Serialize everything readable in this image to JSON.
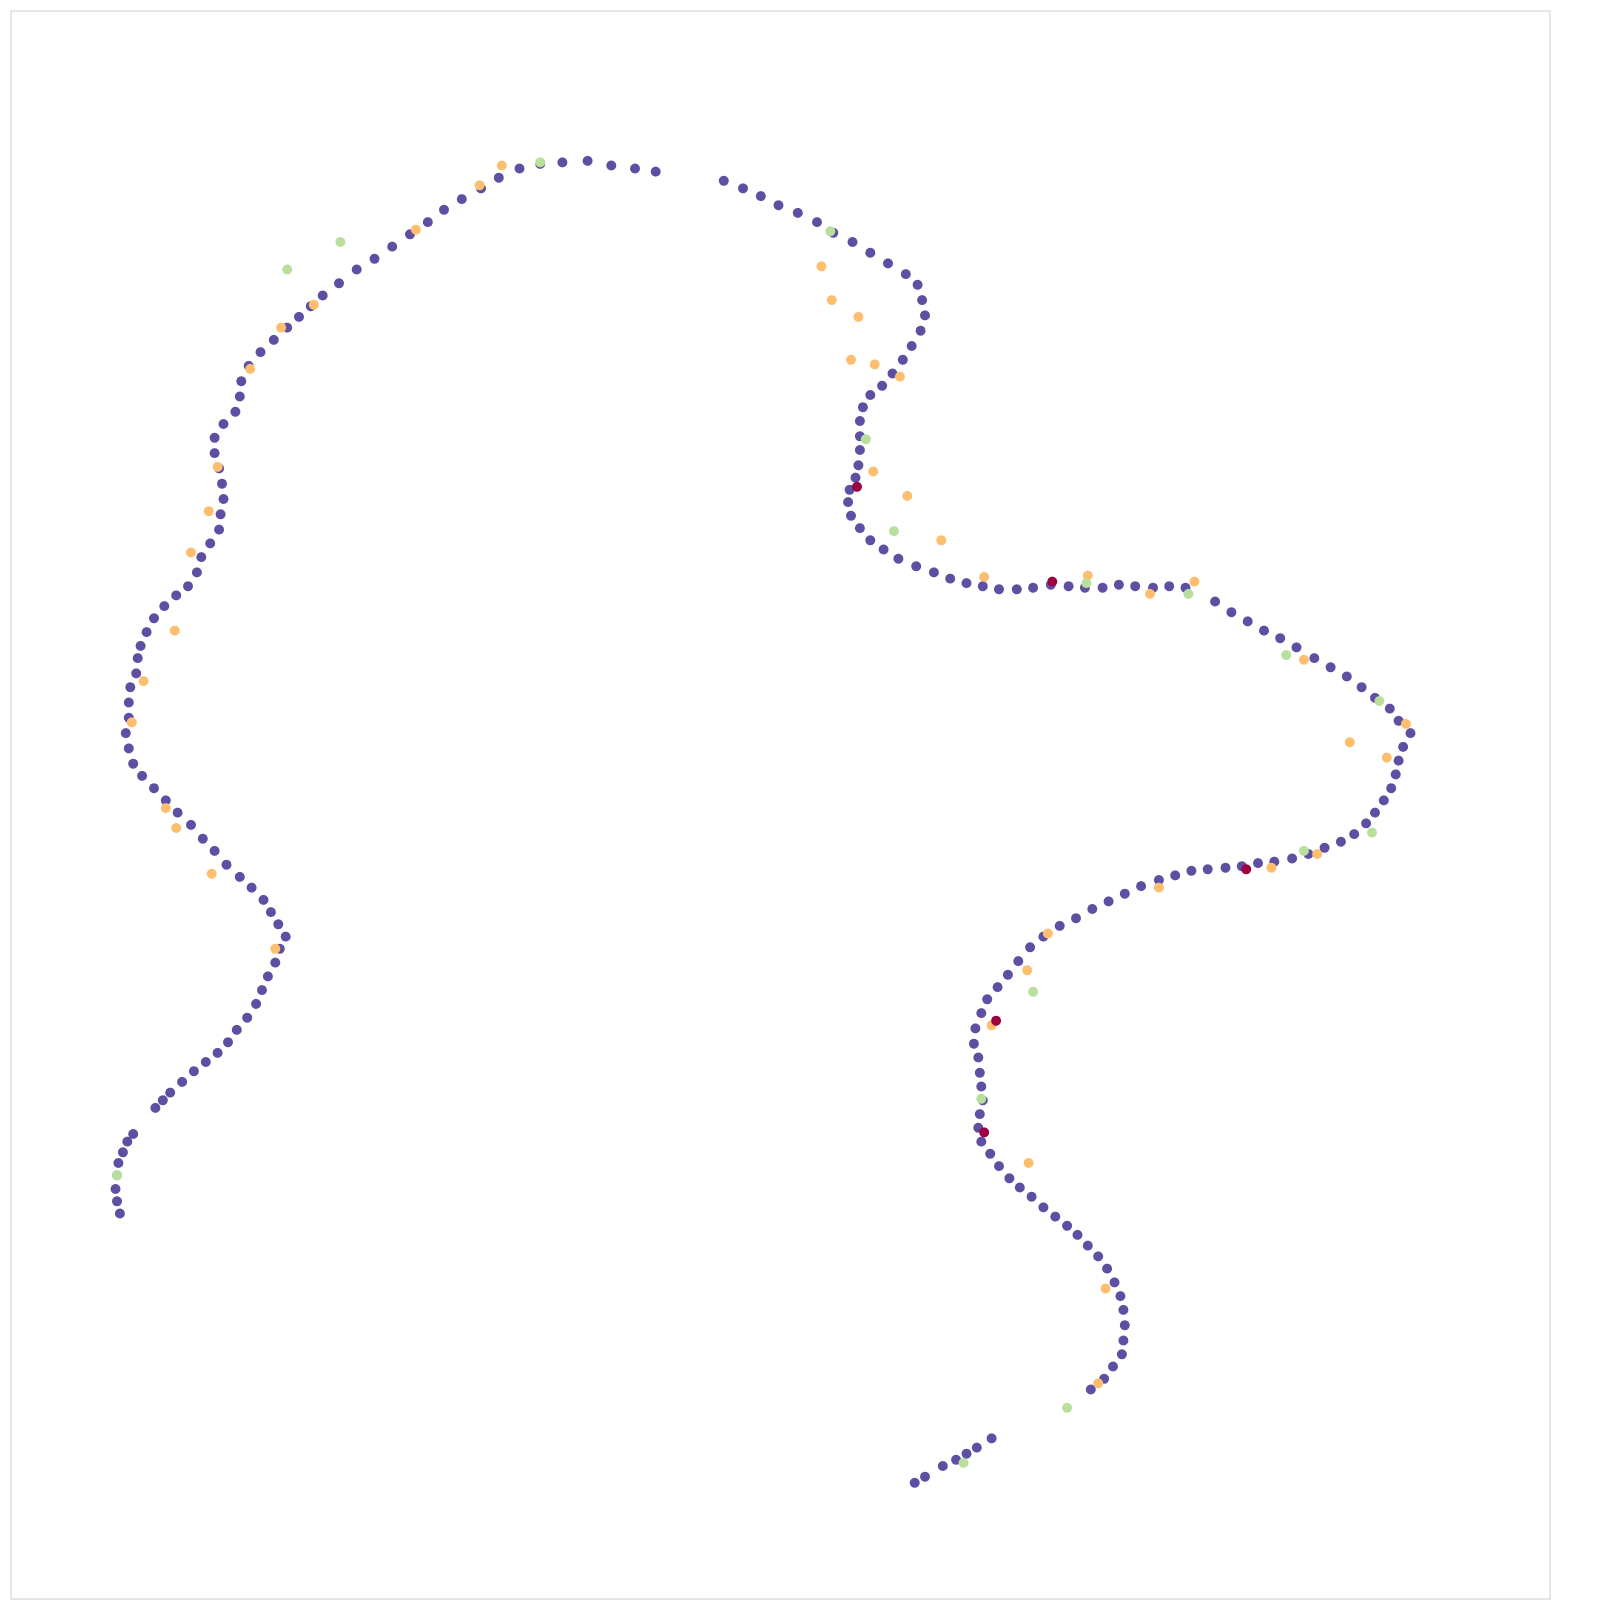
{
  "chart_data": {
    "type": "scatter",
    "title": "",
    "xlabel": "",
    "ylabel": "",
    "grid": false,
    "axes_visible": false,
    "legend": "none",
    "xlim": [
      0,
      100
    ],
    "ylim": [
      0,
      100
    ],
    "colors": {
      "primary": "#5e4fa2",
      "orange": "#fdbf6f",
      "green": "#b8df9c",
      "crimson": "#9e0142",
      "frame": "#dddddd"
    },
    "series": [
      {
        "color": "#5e4fa2",
        "points": [
          [
            5.4,
            23.3
          ],
          [
            5.2,
            24.1
          ],
          [
            5.1,
            24.9
          ],
          [
            5.2,
            25.8
          ],
          [
            5.3,
            26.6
          ],
          [
            5.6,
            27.3
          ],
          [
            5.9,
            28.0
          ],
          [
            6.3,
            28.5
          ],
          [
            7.8,
            30.2
          ],
          [
            8.3,
            30.7
          ],
          [
            8.8,
            31.2
          ],
          [
            9.6,
            31.9
          ],
          [
            10.4,
            32.6
          ],
          [
            11.2,
            33.2
          ],
          [
            12.0,
            33.8
          ],
          [
            12.7,
            34.5
          ],
          [
            13.3,
            35.3
          ],
          [
            14.0,
            36.1
          ],
          [
            14.6,
            37.0
          ],
          [
            15.0,
            37.9
          ],
          [
            15.4,
            38.8
          ],
          [
            15.9,
            39.7
          ],
          [
            16.2,
            40.6
          ],
          [
            16.6,
            41.4
          ],
          [
            16.1,
            42.2
          ],
          [
            15.6,
            43.0
          ],
          [
            15.1,
            43.8
          ],
          [
            14.3,
            44.6
          ],
          [
            13.5,
            45.3
          ],
          [
            12.6,
            46.1
          ],
          [
            11.8,
            47.0
          ],
          [
            11.0,
            47.8
          ],
          [
            10.2,
            48.7
          ],
          [
            9.3,
            49.5
          ],
          [
            8.5,
            50.3
          ],
          [
            7.7,
            51.1
          ],
          [
            6.9,
            51.9
          ],
          [
            6.3,
            52.7
          ],
          [
            6.0,
            53.7
          ],
          [
            5.8,
            54.7
          ],
          [
            6.0,
            55.7
          ],
          [
            6.0,
            56.7
          ],
          [
            6.1,
            57.7
          ],
          [
            6.5,
            58.6
          ],
          [
            6.6,
            59.6
          ],
          [
            6.8,
            60.4
          ],
          [
            7.2,
            61.3
          ],
          [
            7.7,
            62.2
          ],
          [
            8.4,
            63.0
          ],
          [
            9.2,
            63.7
          ],
          [
            10.0,
            64.3
          ],
          [
            10.6,
            65.2
          ],
          [
            10.9,
            66.2
          ],
          [
            11.5,
            67.1
          ],
          [
            12.1,
            68.0
          ],
          [
            12.2,
            69.0
          ],
          [
            12.4,
            70.0
          ],
          [
            12.3,
            71.0
          ],
          [
            12.1,
            72.0
          ],
          [
            11.8,
            73.0
          ],
          [
            11.8,
            74.0
          ],
          [
            12.4,
            74.9
          ],
          [
            13.2,
            75.7
          ],
          [
            13.5,
            76.7
          ],
          [
            13.6,
            77.7
          ],
          [
            14.1,
            78.7
          ],
          [
            14.9,
            79.6
          ],
          [
            15.8,
            80.4
          ],
          [
            16.7,
            81.2
          ],
          [
            17.5,
            81.9
          ],
          [
            18.3,
            82.6
          ],
          [
            19.1,
            83.3
          ],
          [
            20.2,
            84.1
          ],
          [
            21.4,
            85.0
          ],
          [
            22.6,
            85.7
          ],
          [
            23.8,
            86.5
          ],
          [
            25.0,
            87.3
          ],
          [
            26.2,
            88.1
          ],
          [
            27.3,
            88.9
          ],
          [
            28.5,
            89.6
          ],
          [
            29.8,
            90.3
          ],
          [
            31.0,
            91.0
          ],
          [
            32.4,
            91.6
          ],
          [
            33.8,
            91.9
          ],
          [
            35.3,
            92.0
          ],
          [
            37.0,
            92.1
          ],
          [
            38.6,
            91.8
          ],
          [
            40.2,
            91.6
          ],
          [
            41.6,
            91.4
          ],
          [
            46.2,
            90.8
          ],
          [
            47.5,
            90.3
          ],
          [
            48.7,
            89.8
          ],
          [
            49.9,
            89.2
          ],
          [
            51.2,
            88.7
          ],
          [
            52.5,
            88.1
          ],
          [
            53.6,
            87.4
          ],
          [
            54.9,
            86.8
          ],
          [
            56.1,
            86.1
          ],
          [
            57.3,
            85.4
          ],
          [
            58.5,
            84.7
          ],
          [
            59.3,
            84.0
          ],
          [
            59.6,
            83.0
          ],
          [
            59.8,
            82.0
          ],
          [
            59.5,
            81.0
          ],
          [
            58.9,
            80.0
          ],
          [
            58.3,
            79.1
          ],
          [
            57.6,
            78.2
          ],
          [
            56.9,
            77.4
          ],
          [
            56.1,
            76.8
          ],
          [
            55.6,
            76.0
          ],
          [
            55.4,
            75.1
          ],
          [
            55.4,
            74.1
          ],
          [
            55.4,
            73.2
          ],
          [
            55.3,
            72.2
          ],
          [
            55.1,
            71.4
          ],
          [
            54.7,
            70.6
          ],
          [
            54.6,
            69.8
          ],
          [
            54.8,
            68.9
          ],
          [
            55.4,
            68.1
          ],
          [
            56.1,
            67.3
          ],
          [
            57.0,
            66.7
          ],
          [
            58.0,
            66.1
          ],
          [
            59.2,
            65.6
          ],
          [
            60.4,
            65.2
          ],
          [
            61.5,
            64.8
          ],
          [
            62.6,
            64.5
          ],
          [
            63.7,
            64.3
          ],
          [
            64.8,
            64.1
          ],
          [
            66.0,
            64.1
          ],
          [
            67.1,
            64.2
          ],
          [
            68.3,
            64.4
          ],
          [
            69.5,
            64.3
          ],
          [
            70.6,
            64.2
          ],
          [
            71.8,
            64.2
          ],
          [
            72.9,
            64.4
          ],
          [
            74.0,
            64.3
          ],
          [
            75.2,
            64.2
          ],
          [
            76.3,
            64.3
          ],
          [
            77.4,
            64.2
          ],
          [
            79.4,
            63.3
          ],
          [
            80.5,
            62.6
          ],
          [
            81.6,
            62.0
          ],
          [
            82.7,
            61.4
          ],
          [
            83.8,
            60.9
          ],
          [
            84.9,
            60.3
          ],
          [
            86.1,
            59.6
          ],
          [
            87.2,
            59.0
          ],
          [
            88.3,
            58.4
          ],
          [
            89.3,
            57.7
          ],
          [
            90.2,
            57.0
          ],
          [
            91.2,
            56.3
          ],
          [
            91.8,
            55.5
          ],
          [
            92.6,
            54.7
          ],
          [
            92.1,
            53.8
          ],
          [
            91.8,
            52.9
          ],
          [
            91.6,
            52.0
          ],
          [
            91.3,
            51.1
          ],
          [
            90.8,
            50.3
          ],
          [
            90.2,
            49.5
          ],
          [
            89.6,
            48.8
          ],
          [
            88.8,
            48.1
          ],
          [
            87.9,
            47.6
          ],
          [
            86.8,
            47.2
          ],
          [
            85.7,
            46.8
          ],
          [
            84.6,
            46.5
          ],
          [
            83.4,
            46.3
          ],
          [
            82.3,
            46.2
          ],
          [
            81.2,
            46.0
          ],
          [
            80.1,
            45.9
          ],
          [
            78.9,
            45.8
          ],
          [
            77.8,
            45.7
          ],
          [
            76.7,
            45.4
          ],
          [
            75.6,
            45.1
          ],
          [
            74.4,
            44.7
          ],
          [
            73.3,
            44.2
          ],
          [
            72.2,
            43.7
          ],
          [
            71.1,
            43.2
          ],
          [
            70.0,
            42.6
          ],
          [
            68.9,
            42.1
          ],
          [
            67.8,
            41.4
          ],
          [
            66.9,
            40.7
          ],
          [
            66.1,
            39.8
          ],
          [
            65.4,
            38.9
          ],
          [
            64.7,
            38.1
          ],
          [
            64.0,
            37.3
          ],
          [
            63.6,
            36.4
          ],
          [
            63.2,
            35.4
          ],
          [
            63.1,
            34.4
          ],
          [
            63.4,
            33.5
          ],
          [
            63.5,
            32.5
          ],
          [
            63.6,
            31.6
          ],
          [
            63.7,
            30.7
          ],
          [
            63.5,
            29.8
          ],
          [
            63.4,
            28.9
          ],
          [
            63.6,
            28.0
          ],
          [
            64.2,
            27.2
          ],
          [
            64.8,
            26.4
          ],
          [
            65.5,
            25.6
          ],
          [
            66.2,
            25.0
          ],
          [
            67.0,
            24.4
          ],
          [
            67.8,
            23.7
          ],
          [
            68.6,
            23.1
          ],
          [
            69.4,
            22.5
          ],
          [
            70.1,
            21.9
          ],
          [
            70.8,
            21.2
          ],
          [
            71.5,
            20.5
          ],
          [
            72.1,
            19.7
          ],
          [
            72.6,
            18.8
          ],
          [
            73.0,
            17.9
          ],
          [
            73.2,
            17.0
          ],
          [
            73.3,
            16.0
          ],
          [
            73.2,
            15.0
          ],
          [
            73.1,
            14.1
          ],
          [
            72.5,
            13.3
          ],
          [
            71.9,
            12.5
          ],
          [
            71.0,
            11.8
          ],
          [
            64.3,
            8.6
          ],
          [
            63.3,
            8.0
          ],
          [
            62.6,
            7.6
          ],
          [
            61.9,
            7.2
          ],
          [
            61.0,
            6.8
          ],
          [
            59.8,
            6.1
          ],
          [
            59.1,
            5.7
          ]
        ]
      },
      {
        "color": "#fdbf6f",
        "points": [
          [
            31.2,
            91.8
          ],
          [
            29.7,
            90.5
          ],
          [
            25.4,
            87.6
          ],
          [
            18.5,
            82.7
          ],
          [
            16.3,
            81.2
          ],
          [
            14.2,
            78.5
          ],
          [
            12.0,
            72.1
          ],
          [
            11.4,
            69.2
          ],
          [
            10.2,
            66.5
          ],
          [
            9.1,
            61.4
          ],
          [
            7.0,
            58.1
          ],
          [
            6.2,
            55.4
          ],
          [
            8.5,
            49.8
          ],
          [
            9.2,
            48.5
          ],
          [
            11.6,
            45.5
          ],
          [
            15.9,
            40.6
          ],
          [
            52.8,
            85.2
          ],
          [
            53.5,
            83.0
          ],
          [
            55.3,
            81.9
          ],
          [
            54.8,
            79.1
          ],
          [
            56.4,
            78.8
          ],
          [
            58.1,
            78.0
          ],
          [
            56.3,
            71.8
          ],
          [
            58.6,
            70.2
          ],
          [
            60.9,
            67.3
          ],
          [
            63.8,
            64.9
          ],
          [
            70.8,
            65.0
          ],
          [
            75.0,
            63.8
          ],
          [
            78.0,
            64.6
          ],
          [
            85.4,
            59.5
          ],
          [
            88.5,
            54.1
          ],
          [
            91.0,
            53.1
          ],
          [
            92.3,
            55.3
          ],
          [
            86.3,
            46.8
          ],
          [
            83.2,
            45.9
          ],
          [
            75.6,
            44.6
          ],
          [
            68.1,
            41.6
          ],
          [
            66.7,
            39.2
          ],
          [
            64.3,
            35.6
          ],
          [
            66.8,
            26.6
          ],
          [
            72.0,
            18.4
          ],
          [
            71.5,
            12.2
          ]
        ]
      },
      {
        "color": "#b8df9c",
        "points": [
          [
            33.8,
            92.0
          ],
          [
            20.3,
            86.8
          ],
          [
            16.7,
            85.0
          ],
          [
            53.4,
            87.5
          ],
          [
            55.8,
            73.9
          ],
          [
            57.7,
            67.9
          ],
          [
            70.7,
            64.5
          ],
          [
            77.6,
            63.8
          ],
          [
            84.2,
            59.8
          ],
          [
            90.5,
            56.8
          ],
          [
            90.0,
            48.2
          ],
          [
            85.4,
            47.0
          ],
          [
            67.1,
            37.8
          ],
          [
            63.6,
            30.8
          ],
          [
            69.4,
            10.6
          ],
          [
            62.4,
            7.0
          ],
          [
            5.2,
            25.8
          ]
        ]
      },
      {
        "color": "#9e0142",
        "points": [
          [
            55.2,
            70.8
          ],
          [
            68.4,
            64.6
          ],
          [
            64.6,
            35.9
          ],
          [
            63.8,
            28.6
          ],
          [
            81.5,
            45.8
          ]
        ]
      }
    ]
  }
}
